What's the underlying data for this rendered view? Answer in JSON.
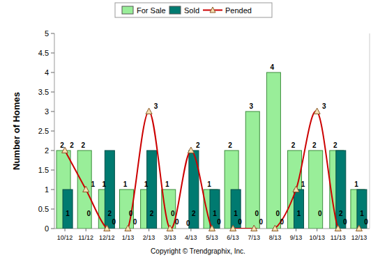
{
  "chart_data": {
    "type": "bar",
    "y_label": "Number of Homes",
    "annotations": [
      "Copyright © Trendgraphix, Inc."
    ],
    "categories": [
      "10/12",
      "11/12",
      "12/12",
      "1/13",
      "2/13",
      "3/13",
      "4/13",
      "5/13",
      "6/13",
      "7/13",
      "8/13",
      "9/13",
      "10/13",
      "11/13",
      "12/13"
    ],
    "series": [
      {
        "name": "For Sale",
        "type": "bar",
        "color": "#99ee99",
        "values": [
          2,
          2,
          1,
          1,
          1,
          1,
          0,
          1,
          2,
          3,
          4,
          2,
          2,
          2,
          1
        ]
      },
      {
        "name": "Sold",
        "type": "bar",
        "color": "#007a70",
        "values": [
          1,
          0,
          2,
          0,
          2,
          0,
          2,
          1,
          1,
          0,
          0,
          1,
          0,
          2,
          1
        ]
      },
      {
        "name": "Pended",
        "type": "line",
        "color": "#cc0000",
        "marker": "triangle",
        "line_style": "smooth",
        "values": [
          2,
          1,
          0,
          0,
          3,
          0,
          2,
          0,
          0,
          0,
          0,
          1,
          3,
          0,
          0
        ]
      }
    ],
    "ylim": [
      0,
      5
    ],
    "yticks": [
      0,
      0.5,
      1,
      1.5,
      2,
      2.5,
      3,
      3.5,
      4,
      4.5,
      5
    ],
    "grid": false,
    "legend": "top",
    "data_labels": true
  }
}
